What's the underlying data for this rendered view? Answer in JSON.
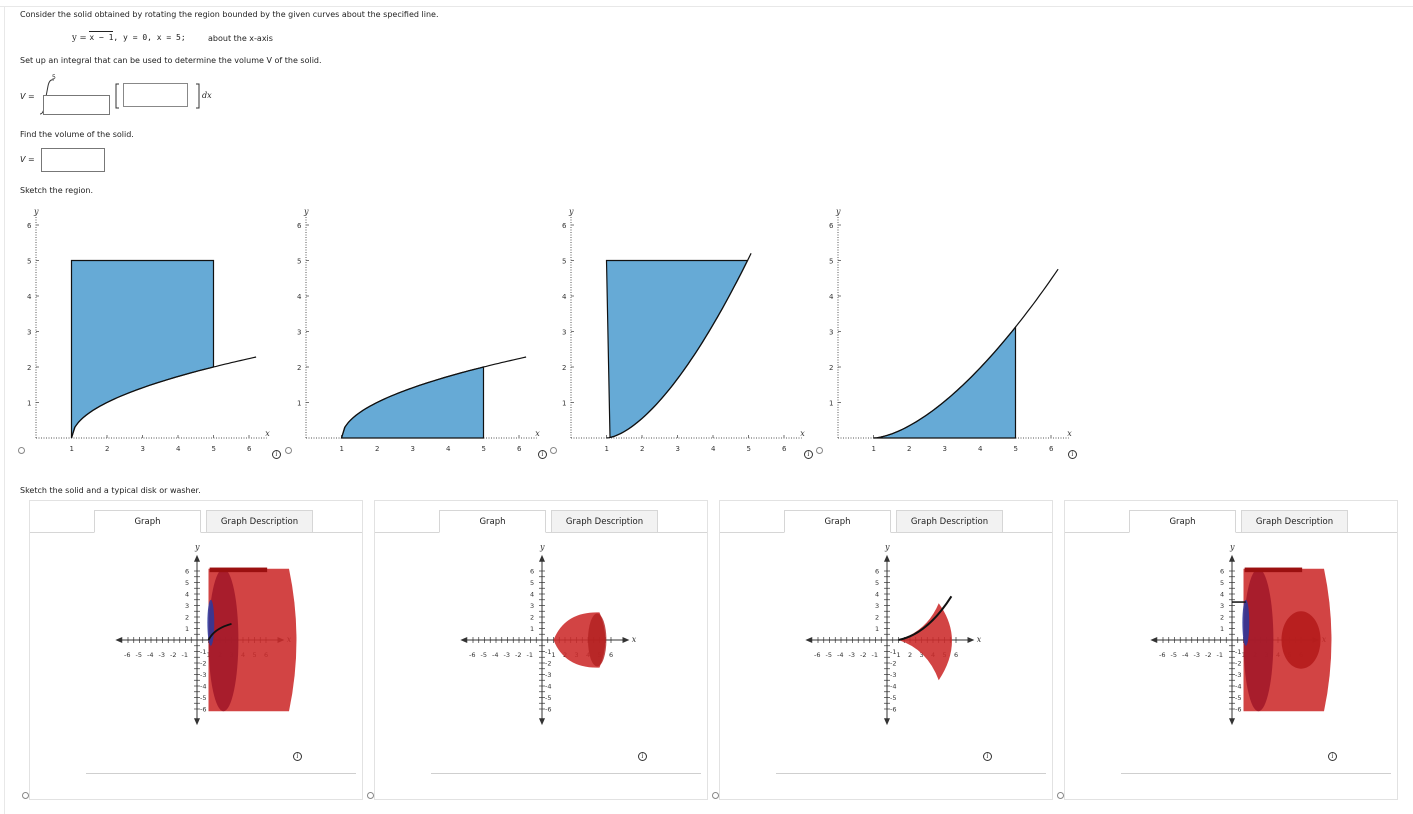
{
  "question": {
    "intro": "Consider the solid obtained by rotating the region bounded by the given curves about the specified line.",
    "curves_y1": "y = ",
    "curves_sqrt_arg": "x − 1",
    "curves_rest": ",  y = 0,  x = 5;",
    "about": "about the x-axis",
    "setup_prompt": "Set up an integral that can be used to determine the volume V of the solid.",
    "v_label": "V =",
    "upper_limit": "5",
    "dx": "dx",
    "find_prompt": "Find the volume of the solid.",
    "v_label2": "V =",
    "sketch_region_prompt": "Sketch the region.",
    "sketch_solid_prompt": "Sketch the solid and a typical disk or washer."
  },
  "region_graphs": {
    "x_label": "x",
    "y_label": "y",
    "x_ticks": [
      "1",
      "2",
      "3",
      "4",
      "5",
      "6"
    ],
    "y_ticks": [
      "1",
      "2",
      "3",
      "4",
      "5",
      "6"
    ],
    "fill_color": "#66aad6"
  },
  "solid_tabs": {
    "graph_label": "Graph",
    "description_label": "Graph Description"
  },
  "solid_graphs": {
    "y_label": "y",
    "x_label": "x",
    "y_ticks_pos": [
      "6",
      "5",
      "4",
      "3",
      "2",
      "1"
    ],
    "y_ticks_neg": [
      "-1",
      "-2",
      "-3",
      "-4",
      "-5",
      "-6"
    ],
    "x_ticks_neg": [
      "-6",
      "-5",
      "-4",
      "-3",
      "-2",
      "-1"
    ],
    "x_ticks_pos": [
      "1",
      "2",
      "3",
      "4",
      "5",
      "6"
    ],
    "solid_color": "#cc2a2a"
  },
  "info_symbol": "i"
}
